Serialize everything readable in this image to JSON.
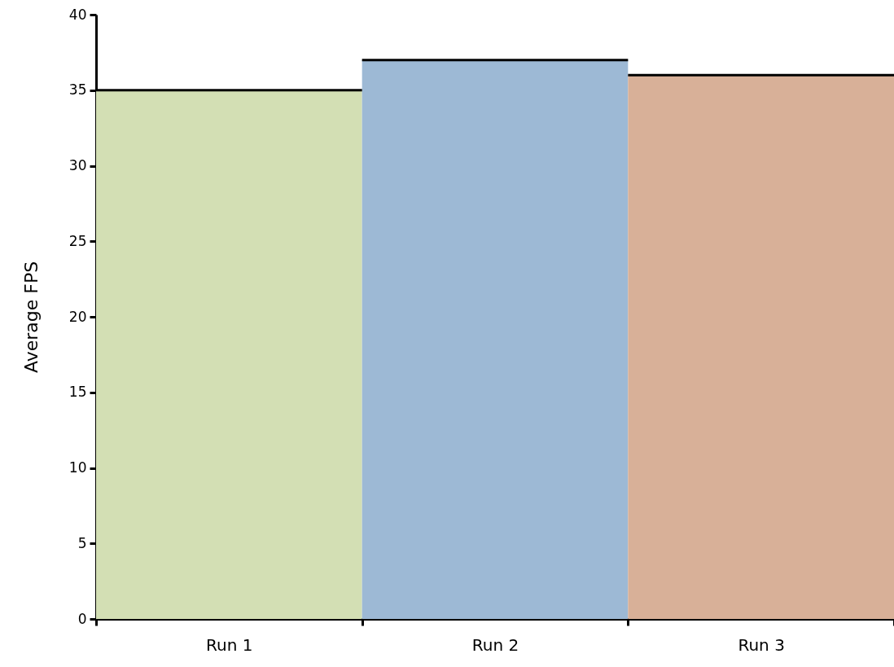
{
  "chart_data": {
    "type": "bar",
    "ylabel": "Average FPS",
    "categories": [
      "Run 1",
      "Run 2",
      "Run 3"
    ],
    "values": [
      35,
      37,
      36
    ],
    "colors": [
      "#d3dfb4",
      "#9db9d5",
      "#d8b098"
    ],
    "ylim": [
      0,
      40
    ],
    "yticks": [
      0,
      5,
      10,
      15,
      20,
      25,
      30,
      35,
      40
    ],
    "grid": false,
    "legend": false
  }
}
